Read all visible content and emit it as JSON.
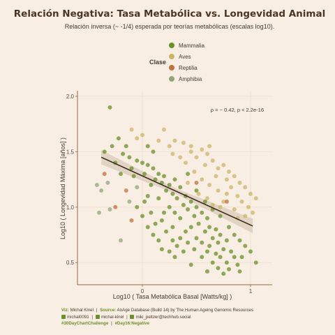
{
  "chart_data": {
    "type": "scatter",
    "title": "Relación Negativa: Tasa Metabólica vs. Longevidad Animal",
    "subtitle": "Relación inversa (~ -1/4) esperada por teorías metabólicas (escalas log10).",
    "xlabel": "Log10 ( Tasa Metabólica Basal [Watts/kg] )",
    "ylabel": "Log10 ( Longevidad Máxima [años] )",
    "xlim": [
      -0.6,
      1.2
    ],
    "ylim": [
      0.3,
      2.05
    ],
    "x_ticks": [
      0,
      1
    ],
    "y_ticks": [
      0.5,
      1.0,
      1.5,
      2.0
    ],
    "x_tick_labels": [
      "0",
      "1"
    ],
    "y_tick_labels": [
      "0.5",
      "1.0",
      "1.5",
      "2.0"
    ],
    "grid": true,
    "legend": {
      "title": "Clase",
      "position": "top-center",
      "entries": [
        {
          "name": "Mammalia",
          "color": "#6b8f2a"
        },
        {
          "name": "Aves",
          "color": "#cbb56a"
        },
        {
          "name": "Reptilia",
          "color": "#c07040"
        },
        {
          "name": "Amphibia",
          "color": "#8fa87a"
        }
      ]
    },
    "annotation": "ρ = − 0.42, p < 2.2e-16",
    "trend_line": {
      "x": [
        -0.38,
        1.02
      ],
      "y": [
        1.45,
        0.83
      ]
    },
    "series": [
      {
        "name": "Mammalia",
        "color": "#6b8f2a",
        "points": [
          [
            -0.3,
            1.9
          ],
          [
            -0.22,
            1.62
          ],
          [
            -0.28,
            1.55
          ],
          [
            -0.35,
            1.5
          ],
          [
            -0.18,
            1.48
          ],
          [
            -0.12,
            1.45
          ],
          [
            -0.25,
            1.4
          ],
          [
            -0.05,
            1.42
          ],
          [
            0.0,
            1.4
          ],
          [
            0.05,
            1.38
          ],
          [
            -0.1,
            1.35
          ],
          [
            0.1,
            1.35
          ],
          [
            0.02,
            1.3
          ],
          [
            -0.08,
            1.28
          ],
          [
            0.15,
            1.3
          ],
          [
            0.12,
            1.25
          ],
          [
            0.2,
            1.28
          ],
          [
            0.08,
            1.2
          ],
          [
            0.18,
            1.22
          ],
          [
            0.25,
            1.2
          ],
          [
            0.3,
            1.25
          ],
          [
            0.22,
            1.15
          ],
          [
            0.28,
            1.12
          ],
          [
            0.35,
            1.18
          ],
          [
            0.05,
            1.1
          ],
          [
            0.15,
            1.08
          ],
          [
            0.32,
            1.08
          ],
          [
            0.4,
            1.1
          ],
          [
            0.38,
            1.02
          ],
          [
            0.45,
            1.05
          ],
          [
            0.25,
            1.0
          ],
          [
            0.2,
            0.95
          ],
          [
            0.3,
            0.95
          ],
          [
            0.42,
            0.98
          ],
          [
            0.5,
            1.0
          ],
          [
            0.48,
            0.92
          ],
          [
            0.35,
            0.9
          ],
          [
            0.55,
            0.95
          ],
          [
            0.6,
            0.9
          ],
          [
            0.52,
            0.85
          ],
          [
            0.45,
            0.82
          ],
          [
            0.62,
            0.82
          ],
          [
            0.4,
            0.78
          ],
          [
            0.58,
            0.78
          ],
          [
            0.68,
            0.8
          ],
          [
            0.5,
            0.72
          ],
          [
            0.65,
            0.72
          ],
          [
            0.72,
            0.75
          ],
          [
            0.55,
            0.68
          ],
          [
            0.62,
            0.65
          ],
          [
            0.7,
            0.68
          ],
          [
            0.78,
            0.7
          ],
          [
            0.48,
            0.62
          ],
          [
            0.6,
            0.6
          ],
          [
            0.75,
            0.62
          ],
          [
            0.68,
            0.58
          ],
          [
            0.82,
            0.6
          ],
          [
            0.55,
            0.55
          ],
          [
            0.72,
            0.55
          ],
          [
            0.85,
            0.55
          ],
          [
            0.65,
            0.5
          ],
          [
            0.78,
            0.5
          ],
          [
            0.92,
            0.55
          ],
          [
            0.88,
            0.48
          ],
          [
            0.7,
            0.45
          ],
          [
            0.8,
            0.44
          ],
          [
            1.05,
            0.5
          ],
          [
            0.6,
            0.42
          ],
          [
            0.75,
            0.4
          ],
          [
            0.9,
            0.42
          ],
          [
            0.45,
            0.48
          ],
          [
            0.3,
            0.55
          ],
          [
            0.25,
            0.6
          ],
          [
            0.18,
            0.62
          ],
          [
            0.15,
            0.7
          ],
          [
            0.1,
            0.75
          ],
          [
            0.22,
            0.78
          ],
          [
            0.05,
            0.82
          ],
          [
            0.12,
            0.85
          ],
          [
            0.28,
            0.82
          ],
          [
            0.18,
            0.88
          ],
          [
            0.0,
            0.92
          ],
          [
            0.08,
            0.95
          ],
          [
            -0.05,
            1.0
          ],
          [
            0.02,
            1.05
          ],
          [
            0.35,
            0.72
          ],
          [
            0.42,
            0.68
          ],
          [
            0.32,
            0.65
          ],
          [
            0.38,
            0.6
          ],
          [
            0.28,
            0.7
          ],
          [
            0.85,
            0.75
          ],
          [
            0.95,
            0.65
          ],
          [
            1.0,
            0.6
          ],
          [
            0.9,
            0.7
          ],
          [
            0.8,
            0.82
          ],
          [
            0.58,
            1.05
          ],
          [
            0.65,
            0.98
          ],
          [
            0.72,
            0.92
          ],
          [
            -0.15,
            1.55
          ],
          [
            -0.2,
            1.3
          ],
          [
            0.1,
            1.5
          ],
          [
            0.05,
            1.55
          ],
          [
            0.42,
            1.3
          ],
          [
            0.5,
            1.15
          ]
        ]
      },
      {
        "name": "Aves",
        "color": "#cbb56a",
        "points": [
          [
            -0.1,
            1.7
          ],
          [
            -0.05,
            1.62
          ],
          [
            0.0,
            1.65
          ],
          [
            0.2,
            1.7
          ],
          [
            0.3,
            1.6
          ],
          [
            0.38,
            1.58
          ],
          [
            0.45,
            1.55
          ],
          [
            0.55,
            1.52
          ],
          [
            0.5,
            1.45
          ],
          [
            0.6,
            1.48
          ],
          [
            0.65,
            1.42
          ],
          [
            0.58,
            1.38
          ],
          [
            0.7,
            1.35
          ],
          [
            0.75,
            1.38
          ],
          [
            0.8,
            1.32
          ],
          [
            0.68,
            1.28
          ],
          [
            0.78,
            1.25
          ],
          [
            0.85,
            1.28
          ],
          [
            0.9,
            1.22
          ],
          [
            0.82,
            1.18
          ],
          [
            0.95,
            1.18
          ],
          [
            1.0,
            1.12
          ],
          [
            0.88,
            1.1
          ],
          [
            0.92,
            1.05
          ],
          [
            1.05,
            1.08
          ],
          [
            0.98,
            1.0
          ],
          [
            0.85,
            0.98
          ],
          [
            0.75,
            1.05
          ],
          [
            0.7,
            1.15
          ],
          [
            0.62,
            1.2
          ],
          [
            0.55,
            1.25
          ],
          [
            0.48,
            1.32
          ],
          [
            0.4,
            1.4
          ],
          [
            0.35,
            1.45
          ],
          [
            0.28,
            1.48
          ],
          [
            0.25,
            1.55
          ],
          [
            0.15,
            1.6
          ],
          [
            0.42,
            1.22
          ],
          [
            0.52,
            1.12
          ],
          [
            0.6,
            1.08
          ],
          [
            0.95,
            0.92
          ],
          [
            1.02,
            0.95
          ],
          [
            0.88,
            0.9
          ],
          [
            0.72,
            1.0
          ],
          [
            0.65,
            1.02
          ],
          [
            0.78,
            1.12
          ],
          [
            0.45,
            1.5
          ],
          [
            0.62,
            1.55
          ]
        ]
      },
      {
        "name": "Reptilia",
        "color": "#c07040",
        "points": [
          [
            -0.35,
            1.3
          ],
          [
            -0.25,
            1.0
          ],
          [
            -0.15,
            1.15
          ],
          [
            -0.1,
            0.88
          ],
          [
            0.5,
            1.22
          ],
          [
            0.78,
            1.05
          ]
        ]
      },
      {
        "name": "Amphibia",
        "color": "#8fa87a",
        "points": [
          [
            -0.42,
            1.2
          ],
          [
            -0.38,
            1.15
          ],
          [
            -0.32,
            1.22
          ],
          [
            -0.3,
            0.98
          ],
          [
            -0.2,
            0.7
          ],
          [
            -0.12,
            1.05
          ],
          [
            -0.05,
            1.18
          ],
          [
            -0.4,
            0.95
          ]
        ]
      }
    ]
  },
  "caption": {
    "viz_label": "Viz:",
    "viz_author": "Michal Kinel",
    "source_label": "Source:",
    "source_text": "AnAge Database (Build 14) by The Human Ageing Genomic Resources",
    "github": "michal0091",
    "linkedin": "michal-kinel",
    "mastodon": "miki_peltzer@techhub.social",
    "tag1": "#30DayChartChallenge",
    "tag2": "#Day16:Negative"
  }
}
